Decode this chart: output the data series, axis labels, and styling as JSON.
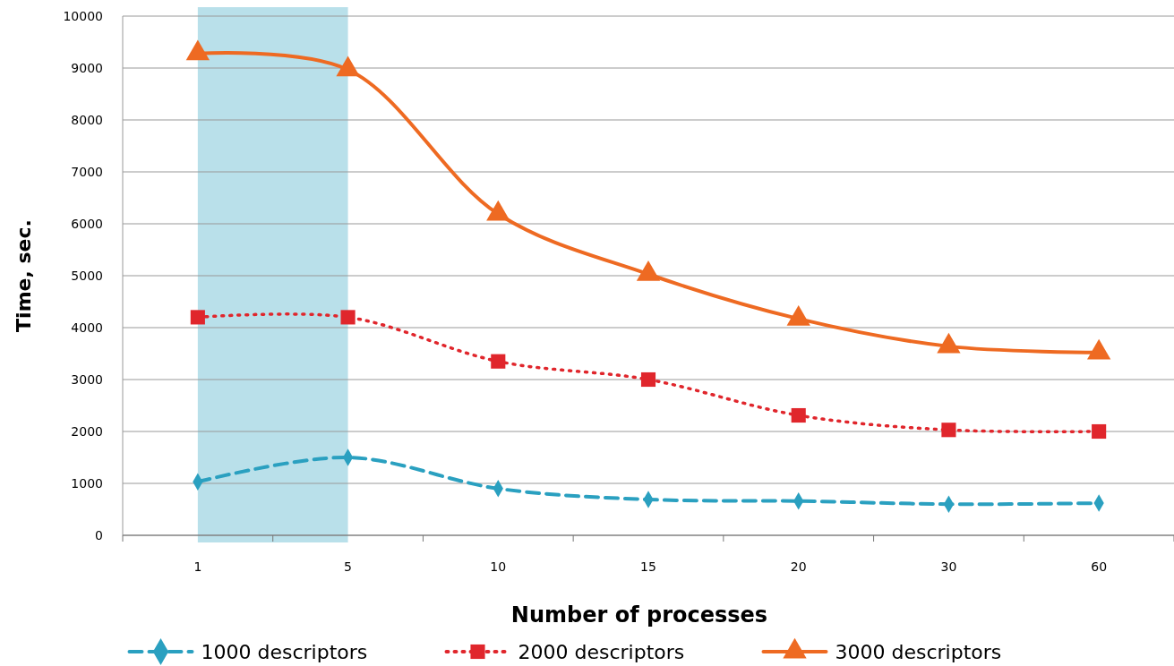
{
  "chart_data": {
    "type": "line",
    "xlabel": "Number of processes",
    "ylabel": "Time, sec.",
    "categories": [
      "1",
      "5",
      "10",
      "15",
      "20",
      "30",
      "60"
    ],
    "ylim": [
      0,
      10000
    ],
    "yticks": [
      0,
      1000,
      2000,
      3000,
      4000,
      5000,
      6000,
      7000,
      8000,
      9000,
      10000
    ],
    "grid": "y",
    "legend": "bottom",
    "bands": [
      {
        "axis": "x",
        "from": "1",
        "to": "5",
        "color": "#b9e0ea"
      }
    ],
    "series": [
      {
        "name": "1000 descriptors",
        "color": "#2aa0c0",
        "marker": "diamond",
        "line_style": "dashed",
        "values": [
          1030,
          1500,
          900,
          690,
          660,
          600,
          620
        ]
      },
      {
        "name": "2000 descriptors",
        "color": "#e0262c",
        "marker": "square",
        "line_style": "dotted",
        "values": [
          4200,
          4200,
          3350,
          3000,
          2310,
          2030,
          2000
        ]
      },
      {
        "name": "3000 descriptors",
        "color": "#ee6a22",
        "marker": "triangle",
        "line_style": "solid",
        "values": [
          9280,
          8970,
          6190,
          5030,
          4170,
          3640,
          3520
        ]
      }
    ]
  }
}
